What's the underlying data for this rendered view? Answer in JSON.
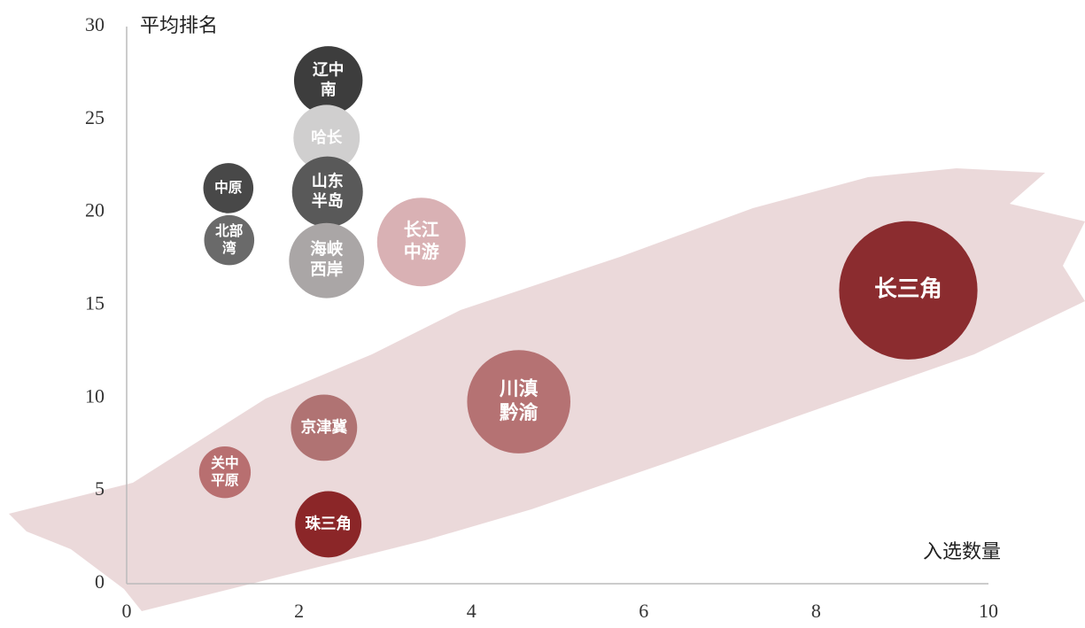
{
  "chart_data": {
    "type": "bubble",
    "y_label": "平均排名",
    "x_label": "入选数量",
    "xlim": [
      0,
      10
    ],
    "xticks": [
      0,
      2,
      4,
      6,
      8,
      10
    ],
    "ylim": [
      0,
      30
    ],
    "yticks": [
      0,
      5,
      10,
      15,
      20,
      25,
      30
    ],
    "points": [
      {
        "label": [
          "辽中",
          "南"
        ],
        "x": 2.34,
        "y": 27.1,
        "size": 15,
        "color": "#3d3d3d"
      },
      {
        "label": [
          "哈长"
        ],
        "x": 2.32,
        "y": 24.0,
        "size": 14,
        "color": "#d0cfcf"
      },
      {
        "label": [
          "山东",
          "半岛"
        ],
        "x": 2.33,
        "y": 21.1,
        "size": 16,
        "color": "#595959"
      },
      {
        "label": [
          "海峡",
          "西岸"
        ],
        "x": 2.32,
        "y": 17.4,
        "size": 18,
        "color": "#aaa6a6"
      },
      {
        "label": [
          "中原"
        ],
        "x": 1.18,
        "y": 21.3,
        "size": 8,
        "color": "#484848"
      },
      {
        "label": [
          "北部",
          "湾"
        ],
        "x": 1.19,
        "y": 18.5,
        "size": 8,
        "color": "#6a6a6a"
      },
      {
        "label": [
          "长江",
          "中游"
        ],
        "x": 3.42,
        "y": 18.4,
        "size": 25,
        "color": "#d9b1b4"
      },
      {
        "label": [
          "长三角"
        ],
        "x": 9.07,
        "y": 15.8,
        "size": 61,
        "color": "#8b2c2f"
      },
      {
        "label": [
          "川滇",
          "黔渝"
        ],
        "x": 4.55,
        "y": 9.8,
        "size": 34,
        "color": "#b57273"
      },
      {
        "label": [
          "京津冀"
        ],
        "x": 2.29,
        "y": 8.4,
        "size": 14,
        "color": "#b07373"
      },
      {
        "label": [
          "关中",
          "平原"
        ],
        "x": 1.14,
        "y": 6.0,
        "size": 8.5,
        "color": "#b86f70"
      },
      {
        "label": [
          "珠三角"
        ],
        "x": 2.34,
        "y": 3.2,
        "size": 14,
        "color": "#8b2628"
      }
    ]
  }
}
